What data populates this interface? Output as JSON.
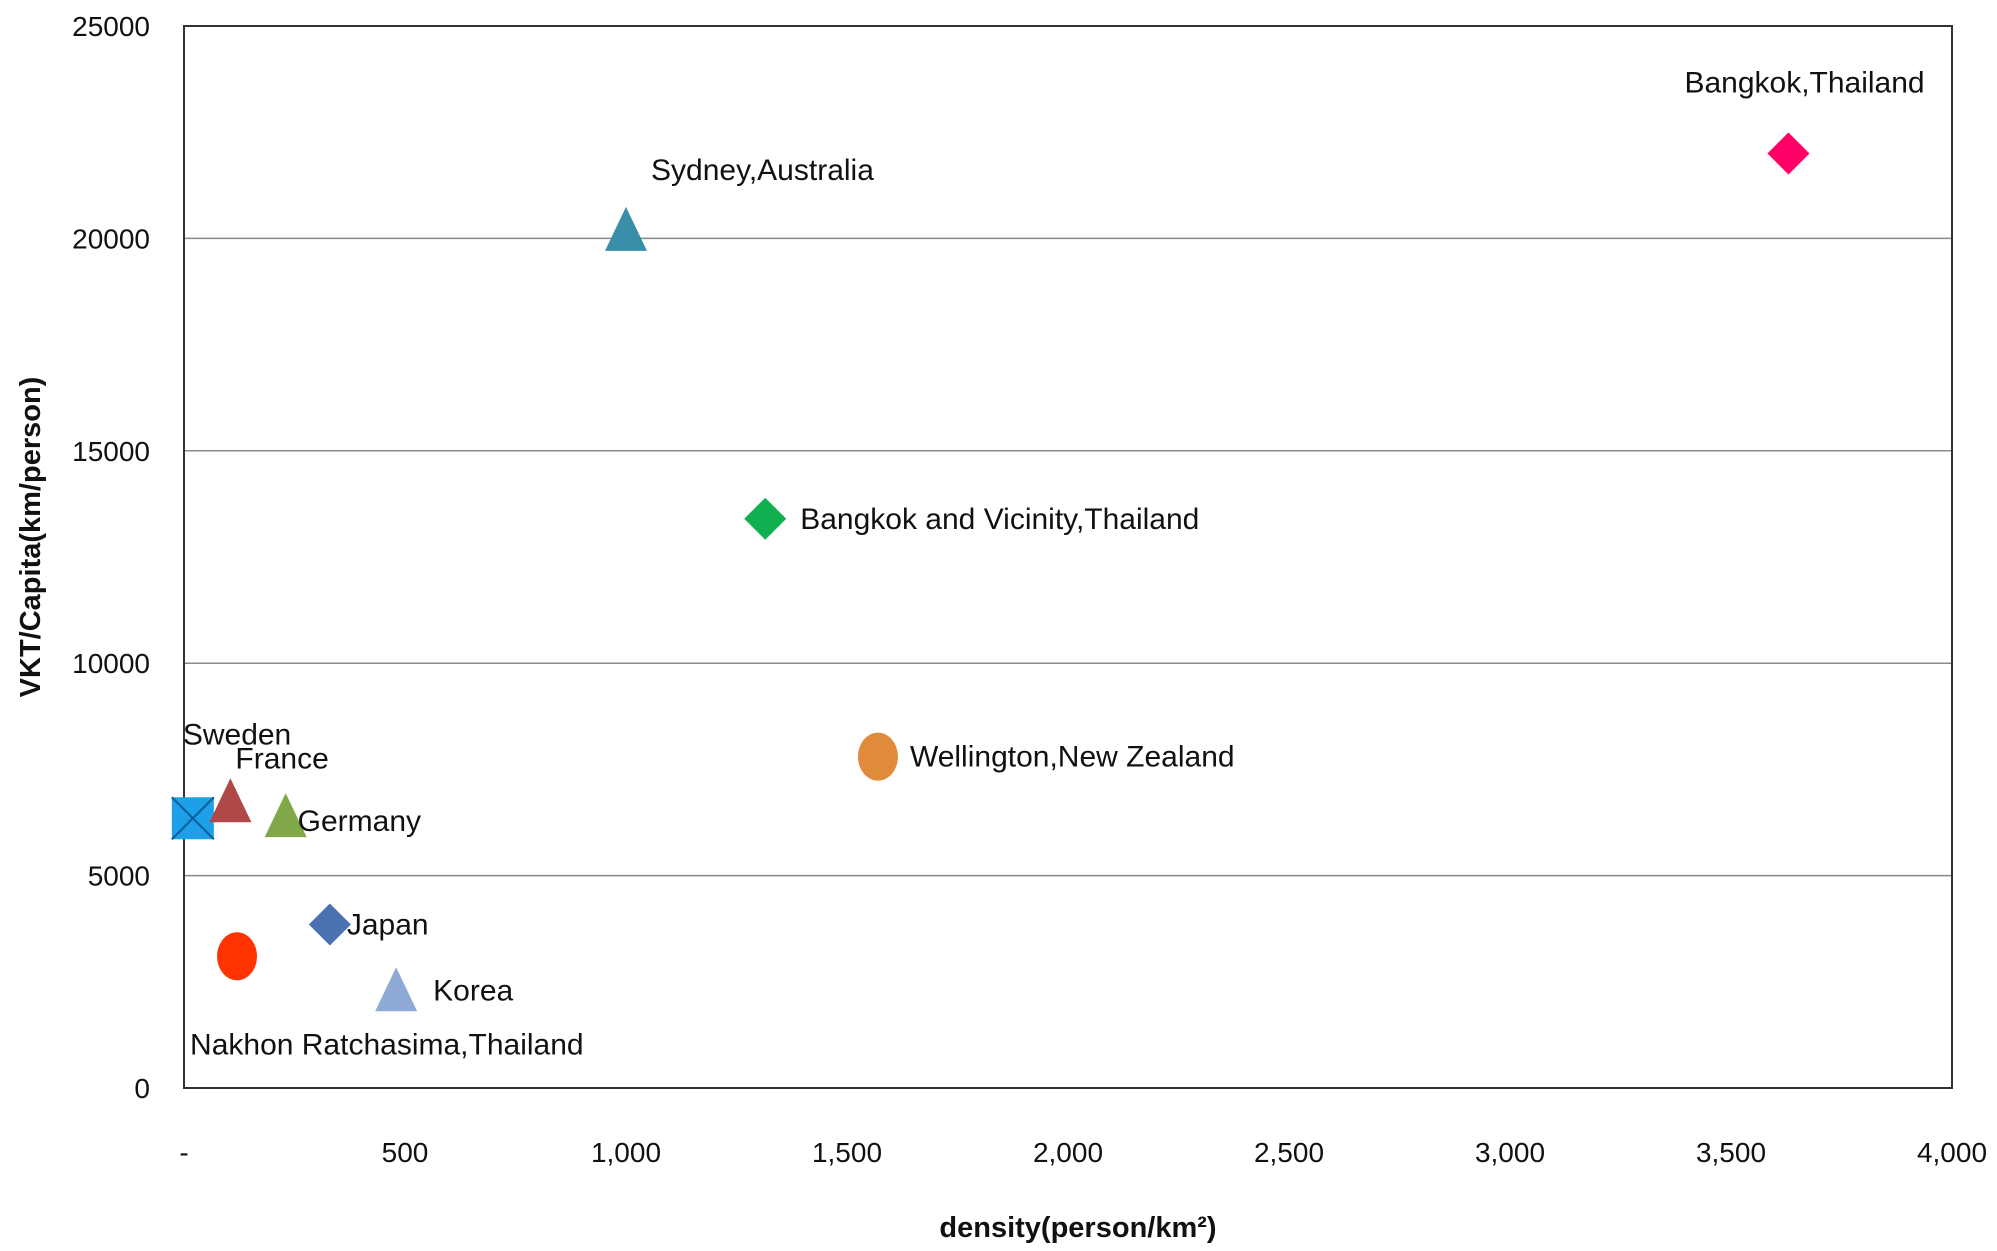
{
  "chart_data": {
    "type": "scatter",
    "title": "",
    "xlabel": "density(person/km²)",
    "ylabel": "VKT/Capita(km/person)",
    "xlim": [
      0,
      4000
    ],
    "ylim": [
      0,
      25000
    ],
    "x_ticks": [
      0,
      500,
      1000,
      1500,
      2000,
      2500,
      3000,
      3500,
      4000
    ],
    "x_tick_labels": [
      "-",
      "500",
      "1,000",
      "1,500",
      "2,000",
      "2,500",
      "3,000",
      "3,500",
      "4,000"
    ],
    "y_ticks": [
      0,
      5000,
      10000,
      15000,
      20000,
      25000
    ],
    "y_tick_labels": [
      "0",
      "5000",
      "10000",
      "15000",
      "20000",
      "25000"
    ],
    "grid": "horizontal",
    "legend": "none",
    "points": [
      {
        "label": "Bangkok,Thailand",
        "x": 3630,
        "y": 22000,
        "marker": "diamond",
        "color": "#ff0066"
      },
      {
        "label": "Sydney,Australia",
        "x": 1000,
        "y": 20200,
        "marker": "triangle",
        "color": "#3a8fa8"
      },
      {
        "label": "Bangkok and Vicinity,Thailand",
        "x": 1315,
        "y": 13400,
        "marker": "diamond",
        "color": "#10b050"
      },
      {
        "label": "Wellington,New Zealand",
        "x": 1570,
        "y": 7800,
        "marker": "circle",
        "color": "#e08a3c"
      },
      {
        "label": "Sweden",
        "x": 20,
        "y": 6350,
        "marker": "x-square",
        "color": "#1ea0e8"
      },
      {
        "label": "France",
        "x": 105,
        "y": 6750,
        "marker": "triangle",
        "color": "#b04848"
      },
      {
        "label": "Germany",
        "x": 230,
        "y": 6400,
        "marker": "triangle",
        "color": "#80a848"
      },
      {
        "label": "Japan",
        "x": 330,
        "y": 3850,
        "marker": "diamond",
        "color": "#4a72b0"
      },
      {
        "label": "Korea",
        "x": 480,
        "y": 2300,
        "marker": "triangle",
        "color": "#90aad8"
      },
      {
        "label": "Nakhon Ratchasima,Thailand",
        "x": 120,
        "y": 3100,
        "marker": "circle",
        "color": "#ff3300"
      }
    ]
  }
}
